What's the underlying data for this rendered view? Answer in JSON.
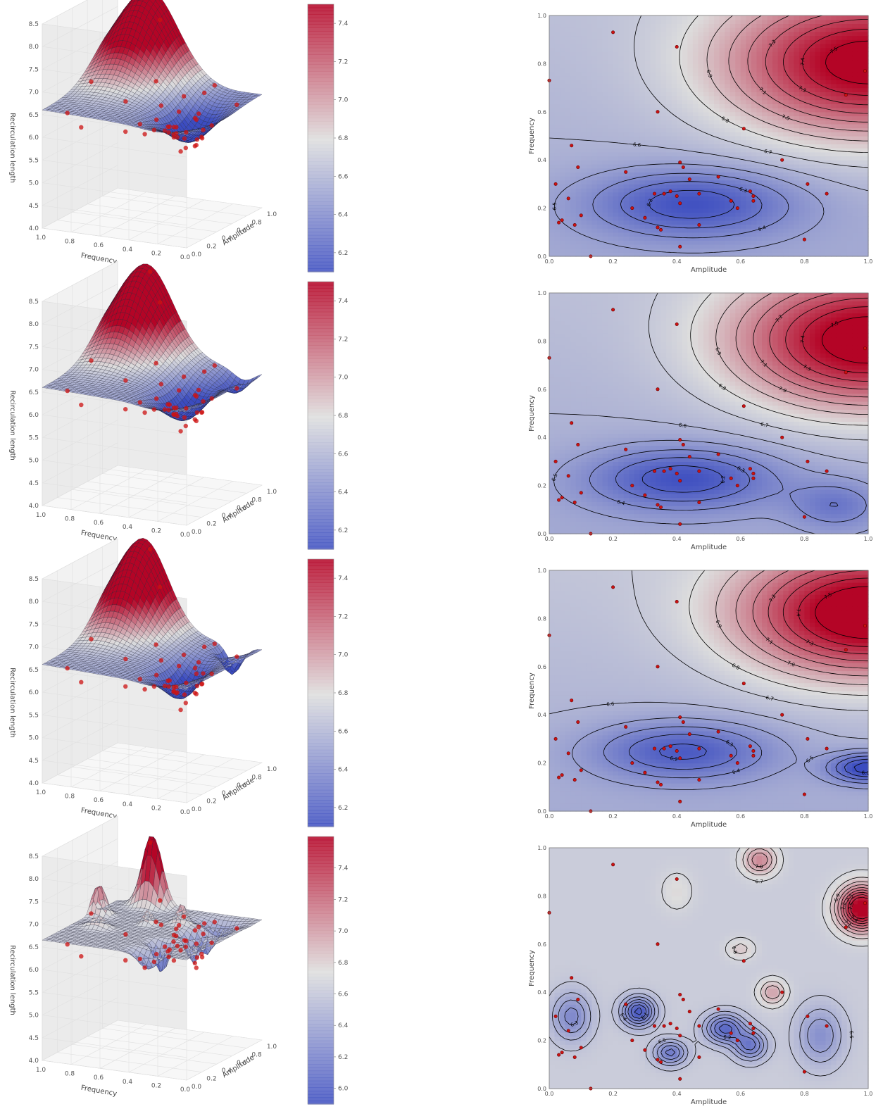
{
  "colors": {
    "cool": "#3b4cc0",
    "neutral": "#dddddd",
    "warm": "#b40426",
    "point_fill": "#cc1111",
    "point_edge": "#660000",
    "contour_line": "#000000",
    "pane_left": "#ebebeb",
    "pane_back": "#f2f2f2",
    "pane_floor": "#f7f7f7"
  },
  "chart_data": [
    {
      "type": "surface3d",
      "zlabel": "Recirculation length",
      "xlabel": "Amplitude",
      "ylabel": "Frequency",
      "xticks": [
        "0.0",
        "0.2",
        "0.4",
        "0.6",
        "0.8",
        "1.0"
      ],
      "yticks": [
        "1.0",
        "0.8",
        "0.6",
        "0.4",
        "0.2",
        "0.0"
      ],
      "zticks": [
        "8.5",
        "8.0",
        "7.5",
        "7.0",
        "6.5",
        "6.0",
        "5.5",
        "5.0",
        "4.5",
        "4.0"
      ],
      "zlim": [
        4.0,
        8.5
      ],
      "surface": {
        "base": 6.55,
        "lows": [
          [
            0.48,
            0.22,
            0.7,
            0.3,
            0.16
          ]
        ],
        "highs": [
          [
            1.0,
            0.78,
            1.9,
            0.42,
            0.28
          ]
        ],
        "fmod": 0.1
      },
      "colorbar": {
        "range": [
          6.1,
          7.5
        ],
        "ticks": [
          "7.4",
          "7.2",
          "7.0",
          "6.8",
          "6.6",
          "6.4",
          "6.2"
        ],
        "values": [
          7.4,
          7.2,
          7.0,
          6.8,
          6.6,
          6.4,
          6.2
        ]
      }
    },
    {
      "type": "contour",
      "xlabel": "Amplitude",
      "ylabel": "Frequency",
      "xticks": [
        "0.0",
        "0.2",
        "0.4",
        "0.6",
        "0.8",
        "1.0"
      ],
      "yticks": [
        "0.0",
        "0.2",
        "0.4",
        "0.6",
        "0.8",
        "1.0"
      ],
      "xlim": [
        0,
        1
      ],
      "ylim": [
        0,
        1
      ],
      "levels": [
        6.1,
        6.2,
        6.3,
        6.4,
        6.5,
        6.6,
        6.7,
        6.8,
        6.9,
        7.0,
        7.1,
        7.2,
        7.3,
        7.4,
        7.5
      ],
      "contour_labels": [
        "6.2",
        "6.3",
        "6.4",
        "6.5",
        "6.6",
        "6.7",
        "6.8",
        "6.9",
        "7.0",
        "7.1",
        "7.2",
        "7.3",
        "7.4",
        "7.5"
      ],
      "color_range": [
        6.1,
        7.5
      ],
      "field": {
        "base": 6.6,
        "lows": [
          [
            0.45,
            0.22,
            0.45,
            0.32,
            0.14
          ]
        ],
        "highs": [
          [
            1.0,
            0.8,
            0.95,
            0.45,
            0.3
          ]
        ],
        "fmod": 0.1
      }
    },
    {
      "type": "surface3d",
      "zlabel": "Recirculation length",
      "xlabel": "Amplitude",
      "ylabel": "Frequency",
      "xticks": [
        "0.0",
        "0.2",
        "0.4",
        "0.6",
        "0.8",
        "1.0"
      ],
      "yticks": [
        "1.0",
        "0.8",
        "0.6",
        "0.4",
        "0.2",
        "0.0"
      ],
      "zticks": [
        "8.5",
        "8.0",
        "7.5",
        "7.0",
        "6.5",
        "6.0",
        "5.5",
        "5.0",
        "4.5",
        "4.0"
      ],
      "zlim": [
        4.0,
        8.5
      ],
      "surface": {
        "base": 6.55,
        "lows": [
          [
            0.45,
            0.24,
            0.7,
            0.3,
            0.14
          ],
          [
            0.9,
            0.12,
            0.4,
            0.14,
            0.1
          ]
        ],
        "highs": [
          [
            1.0,
            0.8,
            1.95,
            0.4,
            0.26
          ]
        ],
        "fmod": 0.1
      },
      "colorbar": {
        "range": [
          6.1,
          7.5
        ],
        "ticks": [
          "7.4",
          "7.2",
          "7.0",
          "6.8",
          "6.6",
          "6.4",
          "6.2"
        ],
        "values": [
          7.4,
          7.2,
          7.0,
          6.8,
          6.6,
          6.4,
          6.2
        ]
      }
    },
    {
      "type": "contour",
      "xlabel": "Amplitude",
      "ylabel": "Frequency",
      "xticks": [
        "0.0",
        "0.2",
        "0.4",
        "0.6",
        "0.8",
        "1.0"
      ],
      "yticks": [
        "0.0",
        "0.2",
        "0.4",
        "0.6",
        "0.8",
        "1.0"
      ],
      "xlim": [
        0,
        1
      ],
      "ylim": [
        0,
        1
      ],
      "levels": [
        6.1,
        6.2,
        6.3,
        6.4,
        6.5,
        6.6,
        6.7,
        6.8,
        6.9,
        7.0,
        7.1,
        7.2,
        7.3,
        7.4,
        7.5
      ],
      "contour_labels": [
        "6.2",
        "6.3",
        "6.4",
        "6.5",
        "6.6",
        "6.7",
        "6.8",
        "6.9",
        "7.0",
        "7.1",
        "7.2",
        "7.3",
        "7.4",
        "7.5"
      ],
      "color_range": [
        6.1,
        7.5
      ],
      "field": {
        "base": 6.6,
        "lows": [
          [
            0.42,
            0.23,
            0.45,
            0.3,
            0.13
          ],
          [
            0.9,
            0.12,
            0.25,
            0.14,
            0.1
          ]
        ],
        "highs": [
          [
            1.0,
            0.8,
            0.98,
            0.42,
            0.28
          ]
        ],
        "fmod": 0.1
      }
    },
    {
      "type": "surface3d",
      "zlabel": "Recirculation length",
      "xlabel": "Amplitude",
      "ylabel": "Frequency",
      "xticks": [
        "0.0",
        "0.2",
        "0.4",
        "0.6",
        "0.8",
        "1.0"
      ],
      "yticks": [
        "1.0",
        "0.8",
        "0.6",
        "0.4",
        "0.2",
        "0.0"
      ],
      "zticks": [
        "8.5",
        "8.0",
        "7.5",
        "7.0",
        "6.5",
        "6.0",
        "5.5",
        "5.0",
        "4.5",
        "4.0"
      ],
      "zlim": [
        4.0,
        8.5
      ],
      "surface": {
        "base": 6.55,
        "lows": [
          [
            0.42,
            0.25,
            0.7,
            0.26,
            0.12
          ],
          [
            0.95,
            0.18,
            0.6,
            0.1,
            0.08
          ]
        ],
        "highs": [
          [
            1.0,
            0.82,
            2.0,
            0.38,
            0.24
          ]
        ],
        "fmod": 0.12
      },
      "colorbar": {
        "range": [
          6.1,
          7.5
        ],
        "ticks": [
          "7.4",
          "7.2",
          "7.0",
          "6.8",
          "6.6",
          "6.4",
          "6.2"
        ],
        "values": [
          7.4,
          7.2,
          7.0,
          6.8,
          6.6,
          6.4,
          6.2
        ]
      }
    },
    {
      "type": "contour",
      "xlabel": "Amplitude",
      "ylabel": "Frequency",
      "xticks": [
        "0.0",
        "0.2",
        "0.4",
        "0.6",
        "0.8",
        "1.0"
      ],
      "yticks": [
        "0.0",
        "0.2",
        "0.4",
        "0.6",
        "0.8",
        "1.0"
      ],
      "xlim": [
        0,
        1
      ],
      "ylim": [
        0,
        1
      ],
      "levels": [
        6.1,
        6.2,
        6.3,
        6.4,
        6.5,
        6.6,
        6.7,
        6.8,
        6.9,
        7.0,
        7.1,
        7.2,
        7.3,
        7.4,
        7.5
      ],
      "contour_labels": [
        "6.1",
        "6.2",
        "6.3",
        "6.4",
        "6.5",
        "6.6",
        "6.7",
        "6.8",
        "6.9",
        "7.0",
        "7.1",
        "7.2",
        "7.3",
        "7.4",
        "7.5"
      ],
      "color_range": [
        6.1,
        7.5
      ],
      "field": {
        "base": 6.62,
        "lows": [
          [
            0.42,
            0.25,
            0.42,
            0.28,
            0.12
          ],
          [
            1.0,
            0.18,
            0.55,
            0.12,
            0.06
          ]
        ],
        "highs": [
          [
            1.0,
            0.82,
            1.0,
            0.4,
            0.26
          ]
        ],
        "fmod": 0.12
      }
    },
    {
      "type": "surface3d",
      "zlabel": "Recirculation length",
      "xlabel": "Amplitude",
      "ylabel": "Frequency",
      "xticks": [
        "0.0",
        "0.2",
        "0.4",
        "0.6",
        "0.8",
        "1.0"
      ],
      "yticks": [
        "1.0",
        "0.8",
        "0.6",
        "0.4",
        "0.2",
        "0.0"
      ],
      "zticks": [
        "8.5",
        "8.0",
        "7.5",
        "7.0",
        "6.5",
        "6.0",
        "5.5",
        "5.0",
        "4.5",
        "4.0"
      ],
      "zlim": [
        4.0,
        8.5
      ],
      "surface": {
        "base": 6.65,
        "lows": [
          [
            0.28,
            0.32,
            0.7,
            0.05,
            0.06
          ],
          [
            0.38,
            0.15,
            0.5,
            0.05,
            0.05
          ],
          [
            0.55,
            0.25,
            0.6,
            0.06,
            0.06
          ],
          [
            0.63,
            0.18,
            0.5,
            0.05,
            0.06
          ],
          [
            0.07,
            0.3,
            0.4,
            0.06,
            0.1
          ],
          [
            0.85,
            0.22,
            0.35,
            0.07,
            0.12
          ]
        ],
        "highs": [
          [
            0.98,
            0.75,
            1.6,
            0.07,
            0.09
          ],
          [
            0.66,
            0.95,
            0.7,
            0.05,
            0.06
          ],
          [
            0.4,
            0.82,
            0.25,
            0.05,
            0.08
          ],
          [
            0.6,
            0.58,
            0.35,
            0.04,
            0.04
          ],
          [
            0.7,
            0.4,
            0.45,
            0.04,
            0.05
          ]
        ],
        "fmod": 0
      },
      "colorbar": {
        "range": [
          5.9,
          7.6
        ],
        "ticks": [
          "7.4",
          "7.2",
          "7.0",
          "6.8",
          "6.6",
          "6.4",
          "6.2",
          "6.0"
        ],
        "values": [
          7.4,
          7.2,
          7.0,
          6.8,
          6.6,
          6.4,
          6.2,
          6.0
        ]
      }
    },
    {
      "type": "contour",
      "xlabel": "Amplitude",
      "ylabel": "Frequency",
      "xticks": [
        "0.0",
        "0.2",
        "0.4",
        "0.6",
        "0.8",
        "1.0"
      ],
      "yticks": [
        "0.0",
        "0.2",
        "0.4",
        "0.6",
        "0.8",
        "1.0"
      ],
      "xlim": [
        0,
        1
      ],
      "ylim": [
        0,
        1
      ],
      "levels": [
        5.9,
        6.0,
        6.1,
        6.2,
        6.3,
        6.4,
        6.5,
        6.6,
        6.7,
        6.8,
        6.9,
        7.0,
        7.1,
        7.2,
        7.3,
        7.4,
        7.5
      ],
      "contour_labels": [
        "5.9",
        "6.0",
        "6.1",
        "6.2",
        "6.3",
        "6.4",
        "6.5",
        "6.6",
        "6.7",
        "6.8",
        "6.9",
        "7.0",
        "7.1",
        "7.2",
        "7.3",
        "7.4",
        "7.5"
      ],
      "color_range": [
        5.9,
        7.6
      ],
      "field": {
        "base": 6.65,
        "lows": [
          [
            0.28,
            0.32,
            0.7,
            0.05,
            0.06
          ],
          [
            0.38,
            0.15,
            0.5,
            0.05,
            0.05
          ],
          [
            0.55,
            0.25,
            0.6,
            0.06,
            0.06
          ],
          [
            0.63,
            0.18,
            0.5,
            0.05,
            0.06
          ],
          [
            0.07,
            0.3,
            0.4,
            0.06,
            0.1
          ],
          [
            0.85,
            0.22,
            0.35,
            0.07,
            0.12
          ]
        ],
        "highs": [
          [
            0.98,
            0.75,
            1.1,
            0.07,
            0.09
          ],
          [
            0.66,
            0.95,
            0.45,
            0.05,
            0.06
          ],
          [
            0.4,
            0.82,
            0.12,
            0.05,
            0.08
          ],
          [
            0.6,
            0.58,
            0.2,
            0.04,
            0.04
          ],
          [
            0.7,
            0.4,
            0.35,
            0.04,
            0.05
          ]
        ],
        "fmod": 0
      }
    }
  ],
  "sample_points": [
    [
      0.0,
      0.73
    ],
    [
      0.02,
      0.3
    ],
    [
      0.03,
      0.14
    ],
    [
      0.04,
      0.15
    ],
    [
      0.06,
      0.24
    ],
    [
      0.07,
      0.46
    ],
    [
      0.08,
      0.13
    ],
    [
      0.09,
      0.37
    ],
    [
      0.1,
      0.17
    ],
    [
      0.13,
      0.0
    ],
    [
      0.2,
      0.93
    ],
    [
      0.24,
      0.35
    ],
    [
      0.26,
      0.2
    ],
    [
      0.3,
      0.16
    ],
    [
      0.33,
      0.26
    ],
    [
      0.34,
      0.12
    ],
    [
      0.35,
      0.11
    ],
    [
      0.34,
      0.6
    ],
    [
      0.36,
      0.26
    ],
    [
      0.38,
      0.27
    ],
    [
      0.4,
      0.25
    ],
    [
      0.41,
      0.22
    ],
    [
      0.41,
      0.04
    ],
    [
      0.4,
      0.87
    ],
    [
      0.41,
      0.39
    ],
    [
      0.42,
      0.37
    ],
    [
      0.44,
      0.32
    ],
    [
      0.47,
      0.26
    ],
    [
      0.47,
      0.13
    ],
    [
      0.53,
      0.33
    ],
    [
      0.57,
      0.23
    ],
    [
      0.59,
      0.2
    ],
    [
      0.61,
      0.53
    ],
    [
      0.63,
      0.27
    ],
    [
      0.64,
      0.25
    ],
    [
      0.64,
      0.23
    ],
    [
      0.73,
      0.4
    ],
    [
      0.8,
      0.07
    ],
    [
      0.81,
      0.3
    ],
    [
      0.87,
      0.26
    ],
    [
      0.93,
      0.67
    ],
    [
      0.99,
      0.77
    ]
  ]
}
